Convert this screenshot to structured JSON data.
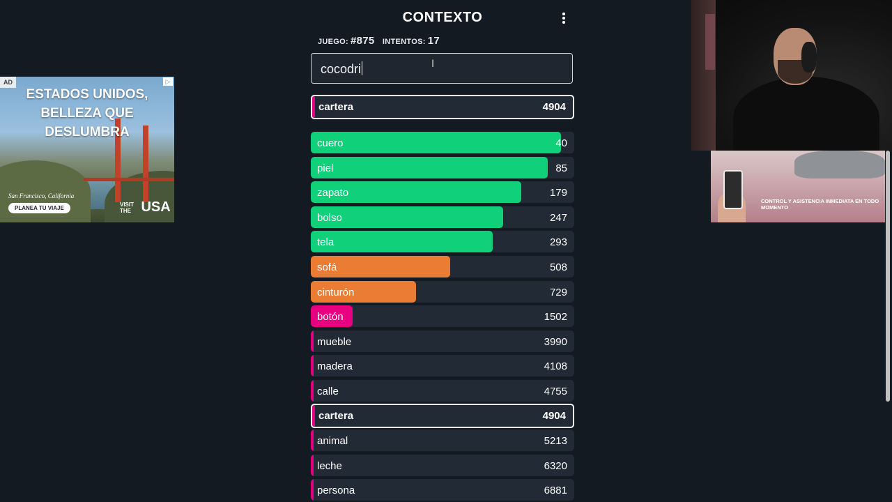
{
  "app": {
    "title": "CONTEXTO",
    "game_label": "JUEGO:",
    "game_value": "#875",
    "attempts_label": "INTENTOS:",
    "attempts_value": "17",
    "input_value": "cocodri",
    "last_guess": {
      "word": "cartera",
      "rank": "4904"
    }
  },
  "colors": {
    "green": "#10d07a",
    "orange": "#ea7d33",
    "pink": "#e7007f",
    "row_bg": "#222a35",
    "page_bg": "#141a22"
  },
  "guesses": [
    {
      "word": "cuero",
      "rank": "40",
      "color": "#10d07a",
      "fill": 0.95
    },
    {
      "word": "piel",
      "rank": "85",
      "color": "#10d07a",
      "fill": 0.9
    },
    {
      "word": "zapato",
      "rank": "179",
      "color": "#10d07a",
      "fill": 0.8
    },
    {
      "word": "bolso",
      "rank": "247",
      "color": "#10d07a",
      "fill": 0.73
    },
    {
      "word": "tela",
      "rank": "293",
      "color": "#10d07a",
      "fill": 0.69
    },
    {
      "word": "sofá",
      "rank": "508",
      "color": "#ea7d33",
      "fill": 0.53
    },
    {
      "word": "cinturón",
      "rank": "729",
      "color": "#ea7d33",
      "fill": 0.4
    },
    {
      "word": "botón",
      "rank": "1502",
      "color": "#e7007f",
      "fill": 0.16
    },
    {
      "word": "mueble",
      "rank": "3990",
      "color": "#e7007f",
      "fill": 0.01
    },
    {
      "word": "madera",
      "rank": "4108",
      "color": "#e7007f",
      "fill": 0.01
    },
    {
      "word": "calle",
      "rank": "4755",
      "color": "#e7007f",
      "fill": 0.01
    },
    {
      "word": "cartera",
      "rank": "4904",
      "color": "#e7007f",
      "fill": 0.01
    },
    {
      "word": "animal",
      "rank": "5213",
      "color": "#e7007f",
      "fill": 0.01
    },
    {
      "word": "leche",
      "rank": "6320",
      "color": "#e7007f",
      "fill": 0.01
    },
    {
      "word": "persona",
      "rank": "6881",
      "color": "#e7007f",
      "fill": 0.01
    }
  ],
  "ad_left": {
    "badge": "AD",
    "headline_1": "ESTADOS UNIDOS,",
    "headline_2": "BELLEZA QUE DESLUMBRA",
    "location": "San Francisco, California",
    "cta": "PLANEA TU VIAJE",
    "visit_small": "VISIT THE",
    "visit_big": "USA"
  },
  "ad_right": {
    "text": "CONTROL Y ASISTENCIA INMEDIATA EN TODO MOMENTO"
  }
}
